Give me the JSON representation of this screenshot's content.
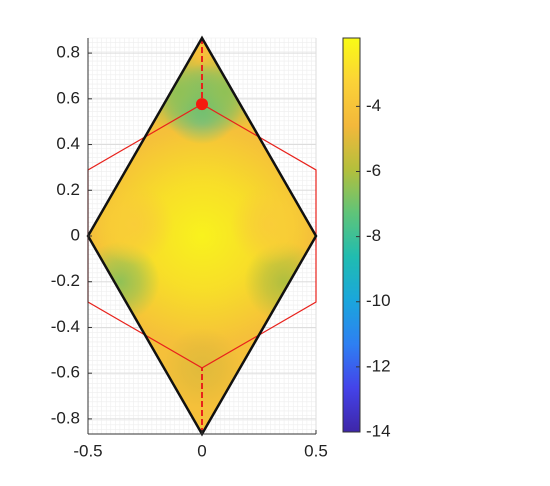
{
  "chart_data": {
    "type": "field",
    "xlim": [
      -0.5,
      0.5
    ],
    "ylim": [
      -0.866,
      0.866
    ],
    "xticks": [
      -0.5,
      0,
      0.5
    ],
    "yticks": [
      0.8,
      0.6,
      0.4,
      0.2,
      0,
      -0.2,
      -0.4,
      -0.6,
      -0.8
    ],
    "grid": true,
    "clim": [
      -14,
      -1.9
    ],
    "cticks": [
      -4,
      -6,
      -8,
      -10,
      -12,
      -14
    ],
    "colormap": [
      "#3e26a8",
      "#4443e9",
      "#2e7ff2",
      "#1aa6dc",
      "#20bcb0",
      "#5fc479",
      "#b4bf3c",
      "#f3b83b",
      "#fbd237",
      "#f9fb15"
    ],
    "field_base": -4.2,
    "field": {
      "x": [
        0,
        0,
        0.1,
        -0.1,
        0,
        -0.36,
        0.36,
        0.3,
        -0.3
      ],
      "y": [
        0,
        0.577,
        0.63,
        0.63,
        -0.577,
        -0.2,
        -0.2,
        0.05,
        0.05
      ],
      "values": [
        -2.2,
        -8,
        -6.5,
        -6.5,
        -5,
        -6.5,
        -6,
        -3.5,
        -3.5
      ]
    },
    "rhombus": {
      "x": [
        0,
        0.5,
        0,
        -0.5
      ],
      "y": [
        0.866,
        0,
        -0.866,
        0
      ]
    },
    "hexagon": {
      "x": [
        0.5,
        0,
        -0.5,
        -0.5,
        0,
        0.5
      ],
      "y": [
        0.289,
        0.577,
        0.289,
        -0.289,
        -0.577,
        -0.289
      ]
    },
    "marker": {
      "x": 0,
      "y": 0.577
    }
  }
}
